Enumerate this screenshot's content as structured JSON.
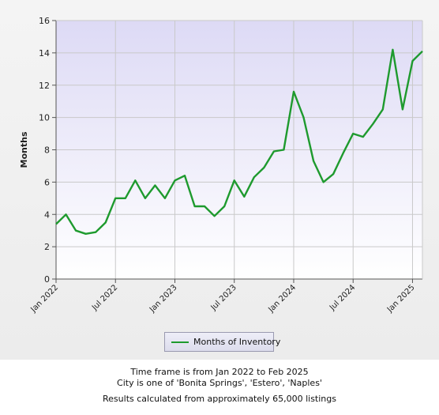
{
  "colors": {
    "line": "#1e9a2e",
    "plot_top": "#dddaf5",
    "plot_bottom": "#ffffff",
    "grid": "#c9c9c9",
    "axis": "#555555"
  },
  "legend": {
    "label": "Months of Inventory"
  },
  "footer": {
    "line1": "Time frame is from Jan 2022 to Feb 2025",
    "line2": "City is one of 'Bonita Springs', 'Estero', 'Naples'",
    "line3": "Results calculated from approximately 65,000 listings"
  },
  "chart_data": {
    "type": "line",
    "title": "",
    "xlabel": "",
    "ylabel": "Months",
    "ylim": [
      0,
      16
    ],
    "yticks": [
      0,
      2,
      4,
      6,
      8,
      10,
      12,
      14,
      16
    ],
    "xticks": [
      "Jan 2022",
      "Jul 2022",
      "Jan 2023",
      "Jul 2023",
      "Jan 2024",
      "Jul 2024",
      "Jan 2025"
    ],
    "grid": true,
    "legend_position": "bottom",
    "x": [
      "2022-01",
      "2022-02",
      "2022-03",
      "2022-04",
      "2022-05",
      "2022-06",
      "2022-07",
      "2022-08",
      "2022-09",
      "2022-10",
      "2022-11",
      "2022-12",
      "2023-01",
      "2023-02",
      "2023-03",
      "2023-04",
      "2023-05",
      "2023-06",
      "2023-07",
      "2023-08",
      "2023-09",
      "2023-10",
      "2023-11",
      "2023-12",
      "2024-01",
      "2024-02",
      "2024-03",
      "2024-04",
      "2024-05",
      "2024-06",
      "2024-07",
      "2024-08",
      "2024-09",
      "2024-10",
      "2024-11",
      "2024-12",
      "2025-01",
      "2025-02"
    ],
    "series": [
      {
        "name": "Months of Inventory",
        "values": [
          3.4,
          4.0,
          3.0,
          2.8,
          2.9,
          3.5,
          5.0,
          5.0,
          6.1,
          5.0,
          5.8,
          5.0,
          6.1,
          6.4,
          4.5,
          4.5,
          3.9,
          4.5,
          6.1,
          5.1,
          6.3,
          6.9,
          7.9,
          8.0,
          11.6,
          10.0,
          7.3,
          6.0,
          6.5,
          7.8,
          9.0,
          8.8,
          9.6,
          10.5,
          14.2,
          10.5,
          13.5,
          14.1
        ]
      }
    ]
  }
}
